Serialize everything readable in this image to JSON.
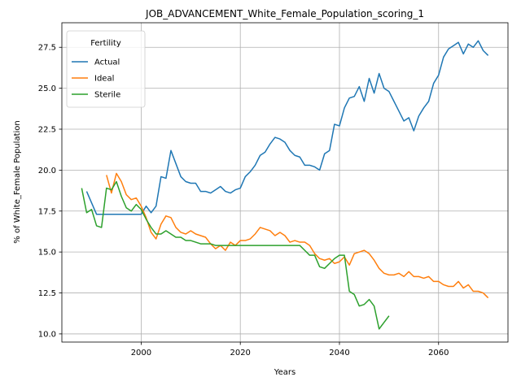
{
  "chart_data": {
    "type": "line",
    "title": "JOB_ADVANCEMENT_White_Female_Population_scoring_1",
    "xlabel": "Years",
    "ylabel": "% of White_Female Population",
    "xlim": [
      1984,
      2074
    ],
    "ylim": [
      9.5,
      29.0
    ],
    "xticks": [
      2000,
      2020,
      2040,
      2060
    ],
    "yticks": [
      10.0,
      12.5,
      15.0,
      17.5,
      20.0,
      22.5,
      25.0,
      27.5
    ],
    "ytick_labels": [
      "10.0",
      "12.5",
      "15.0",
      "17.5",
      "20.0",
      "22.5",
      "25.0",
      "27.5"
    ],
    "grid": true,
    "legend": {
      "title": "Fertility",
      "placement": "top-left"
    },
    "series": [
      {
        "name": "Actual",
        "color": "#1f77b4",
        "x": [
          1989,
          1990,
          1991,
          1992,
          1993,
          1994,
          1995,
          1996,
          1997,
          1998,
          1999,
          2000,
          2001,
          2002,
          2003,
          2004,
          2005,
          2006,
          2007,
          2008,
          2009,
          2010,
          2011,
          2012,
          2013,
          2014,
          2015,
          2016,
          2017,
          2018,
          2019,
          2020,
          2021,
          2022,
          2023,
          2024,
          2025,
          2026,
          2027,
          2028,
          2029,
          2030,
          2031,
          2032,
          2033,
          2034,
          2035,
          2036,
          2037,
          2038,
          2039,
          2040,
          2041,
          2042,
          2043,
          2044,
          2045,
          2046,
          2047,
          2048,
          2049,
          2050,
          2051,
          2052,
          2053,
          2054,
          2055,
          2056,
          2057,
          2058,
          2059,
          2060,
          2061,
          2062,
          2063,
          2064,
          2065,
          2066,
          2067,
          2068,
          2069,
          2070
        ],
        "values": [
          18.7,
          18.0,
          17.3,
          17.3,
          17.3,
          17.3,
          17.3,
          17.3,
          17.3,
          17.3,
          17.3,
          17.3,
          17.8,
          17.4,
          17.8,
          19.6,
          19.5,
          21.2,
          20.4,
          19.6,
          19.3,
          19.2,
          19.2,
          18.7,
          18.7,
          18.6,
          18.8,
          19.0,
          18.7,
          18.6,
          18.8,
          18.9,
          19.6,
          19.9,
          20.3,
          20.9,
          21.1,
          21.6,
          22.0,
          21.9,
          21.7,
          21.2,
          20.9,
          20.8,
          20.3,
          20.3,
          20.2,
          20.0,
          21.0,
          21.2,
          22.8,
          22.7,
          23.8,
          24.4,
          24.5,
          25.1,
          24.2,
          25.6,
          24.7,
          25.9,
          25.0,
          24.8,
          24.2,
          23.6,
          23.0,
          23.2,
          22.4,
          23.3,
          23.8,
          24.2,
          25.3,
          25.8,
          26.9,
          27.4,
          27.6,
          27.8,
          27.1,
          27.7,
          27.5,
          27.9,
          27.3,
          27.0
        ]
      },
      {
        "name": "Ideal",
        "color": "#ff7f0e",
        "x": [
          1993,
          1994,
          1995,
          1996,
          1997,
          1998,
          1999,
          2000,
          2001,
          2002,
          2003,
          2004,
          2005,
          2006,
          2007,
          2008,
          2009,
          2010,
          2011,
          2012,
          2013,
          2014,
          2015,
          2016,
          2017,
          2018,
          2019,
          2020,
          2021,
          2022,
          2023,
          2024,
          2025,
          2026,
          2027,
          2028,
          2029,
          2030,
          2031,
          2032,
          2033,
          2034,
          2035,
          2036,
          2037,
          2038,
          2039,
          2040,
          2041,
          2042,
          2043,
          2044,
          2045,
          2046,
          2047,
          2048,
          2049,
          2050,
          2051,
          2052,
          2053,
          2054,
          2055,
          2056,
          2057,
          2058,
          2059,
          2060,
          2061,
          2062,
          2063,
          2064,
          2065,
          2066,
          2067,
          2068,
          2069,
          2070
        ],
        "values": [
          19.7,
          18.6,
          19.8,
          19.3,
          18.5,
          18.2,
          18.3,
          17.8,
          17.1,
          16.2,
          15.8,
          16.7,
          17.2,
          17.1,
          16.5,
          16.2,
          16.1,
          16.3,
          16.1,
          16.0,
          15.9,
          15.5,
          15.2,
          15.4,
          15.1,
          15.6,
          15.4,
          15.7,
          15.7,
          15.8,
          16.1,
          16.5,
          16.4,
          16.3,
          16.0,
          16.2,
          16.0,
          15.6,
          15.7,
          15.6,
          15.6,
          15.4,
          14.9,
          14.6,
          14.5,
          14.6,
          14.3,
          14.4,
          14.7,
          14.2,
          14.9,
          15.0,
          15.1,
          14.9,
          14.5,
          14.0,
          13.7,
          13.6,
          13.6,
          13.7,
          13.5,
          13.8,
          13.5,
          13.5,
          13.4,
          13.5,
          13.2,
          13.2,
          13.0,
          12.9,
          12.9,
          13.2,
          12.8,
          13.0,
          12.6,
          12.6,
          12.5,
          12.2
        ]
      },
      {
        "name": "Sterile",
        "color": "#2ca02c",
        "x": [
          1988,
          1989,
          1990,
          1991,
          1992,
          1993,
          1994,
          1995,
          1996,
          1997,
          1998,
          1999,
          2000,
          2001,
          2002,
          2003,
          2004,
          2005,
          2006,
          2007,
          2008,
          2009,
          2010,
          2011,
          2012,
          2013,
          2014,
          2015,
          2016,
          2017,
          2018,
          2019,
          2020,
          2021,
          2022,
          2023,
          2024,
          2025,
          2026,
          2027,
          2028,
          2029,
          2030,
          2031,
          2032,
          2033,
          2034,
          2035,
          2036,
          2037,
          2038,
          2039,
          2040,
          2041,
          2042,
          2043,
          2044,
          2045,
          2046,
          2047,
          2048,
          2049,
          2050
        ],
        "values": [
          18.9,
          17.4,
          17.6,
          16.6,
          16.5,
          18.9,
          18.8,
          19.3,
          18.4,
          17.7,
          17.5,
          17.9,
          17.6,
          17.0,
          16.5,
          16.1,
          16.1,
          16.3,
          16.1,
          15.9,
          15.9,
          15.7,
          15.7,
          15.6,
          15.5,
          15.5,
          15.5,
          15.4,
          15.4,
          15.4,
          15.4,
          15.4,
          15.4,
          15.4,
          15.4,
          15.4,
          15.4,
          15.4,
          15.4,
          15.4,
          15.4,
          15.4,
          15.4,
          15.4,
          15.4,
          15.1,
          14.8,
          14.8,
          14.1,
          14.0,
          14.3,
          14.6,
          14.8,
          14.8,
          12.6,
          12.4,
          11.7,
          11.8,
          12.1,
          11.7,
          10.3,
          10.7,
          11.1
        ]
      }
    ]
  }
}
